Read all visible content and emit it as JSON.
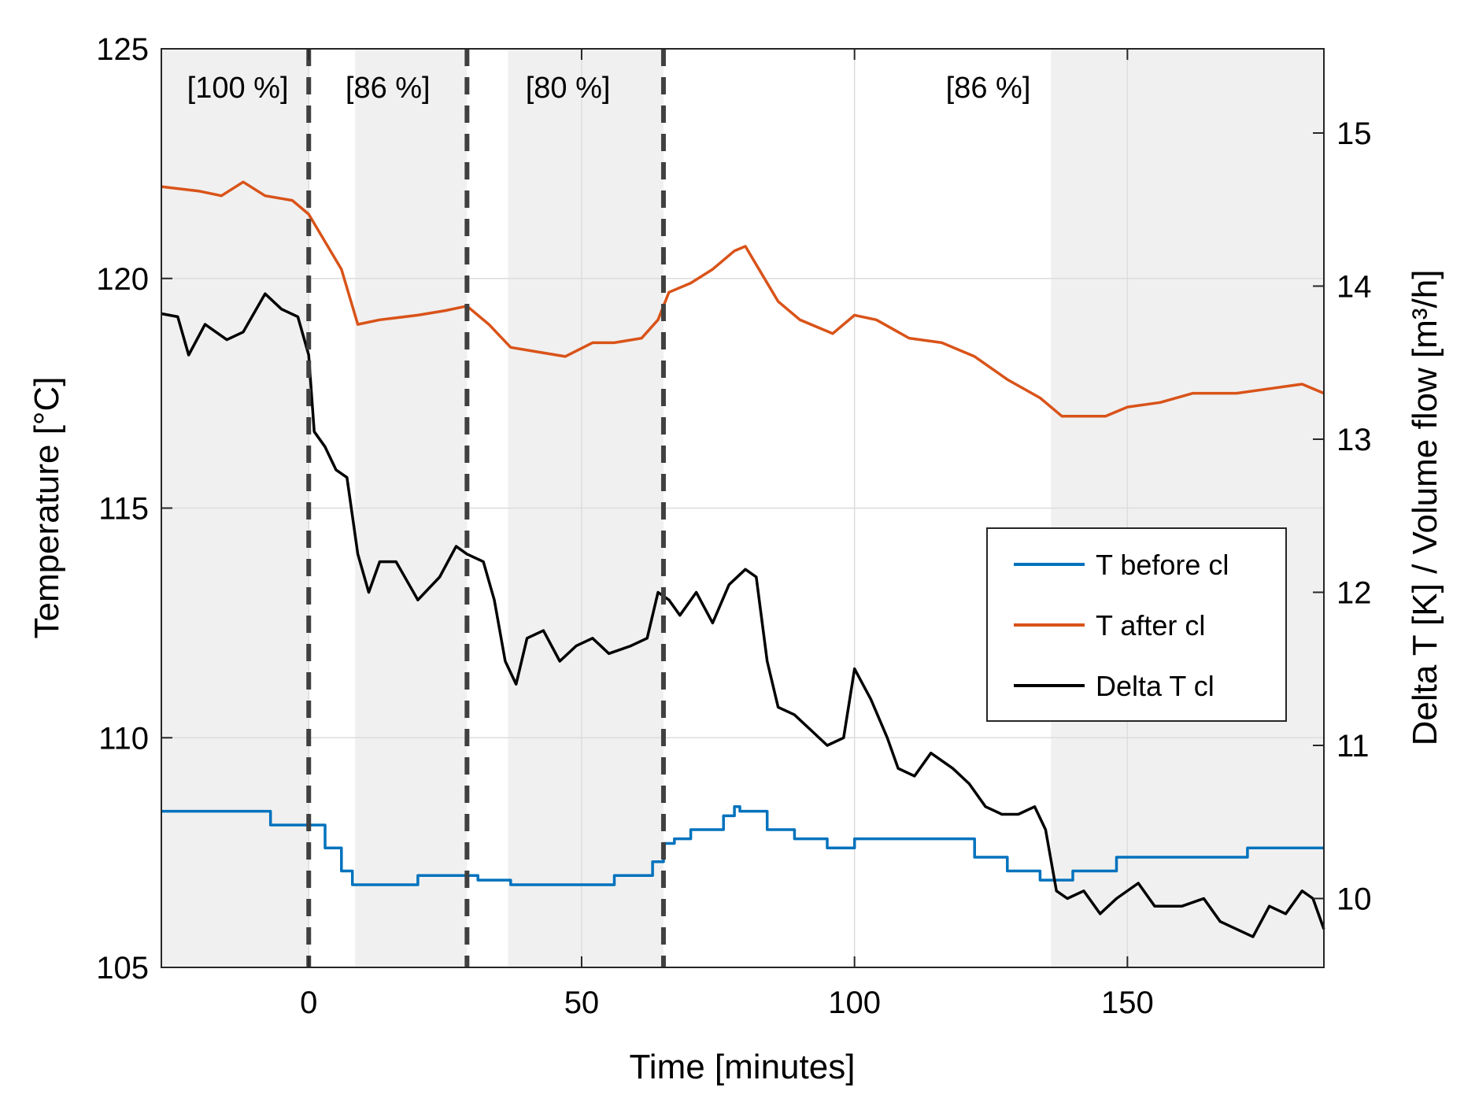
{
  "chart_data": {
    "type": "line",
    "xlabel": "Time [minutes]",
    "ylabel_left": "Temperature [°C]",
    "ylabel_right": "Delta T [K] / Volume flow [m³/h]",
    "xlim": [
      -27,
      186
    ],
    "ylim_left": [
      105,
      125
    ],
    "ylim_right": [
      9.55,
      15.55
    ],
    "x_ticks": [
      0,
      50,
      100,
      150
    ],
    "x_tick_labels": [
      "0",
      "50",
      "100",
      "150"
    ],
    "y_ticks_left": [
      105,
      110,
      115,
      120,
      125
    ],
    "y_tick_labels_left": [
      "105",
      "110",
      "115",
      "120",
      "125"
    ],
    "y_ticks_right": [
      10,
      11,
      12,
      13,
      14,
      15
    ],
    "y_tick_labels_right": [
      "10",
      "11",
      "12",
      "13",
      "14",
      "15"
    ],
    "grid": true,
    "legend_position": "center-right",
    "phase_boundaries": [
      0,
      29,
      65
    ],
    "phase_labels": [
      {
        "text": "[100 %]",
        "x": -13
      },
      {
        "text": "[86 %]",
        "x": 14.5
      },
      {
        "text": "[80 %]",
        "x": 47.5
      },
      {
        "text": "[86 %]",
        "x": 124.5
      }
    ],
    "shaded_intervals": [
      [
        -27,
        0
      ],
      [
        8.5,
        29
      ],
      [
        36.5,
        65
      ],
      [
        136,
        186
      ]
    ],
    "series": [
      {
        "name": "T before cl",
        "color": "#0072BD",
        "axis": "left",
        "step": true,
        "points": [
          [
            -27,
            108.4
          ],
          [
            -12,
            108.4
          ],
          [
            -7,
            108.1
          ],
          [
            0,
            108.1
          ],
          [
            3,
            107.6
          ],
          [
            6,
            107.1
          ],
          [
            8,
            106.8
          ],
          [
            17,
            106.8
          ],
          [
            20,
            107.0
          ],
          [
            27,
            107.0
          ],
          [
            31,
            106.9
          ],
          [
            37,
            106.8
          ],
          [
            52,
            106.8
          ],
          [
            56,
            107.0
          ],
          [
            60,
            107.0
          ],
          [
            63,
            107.3
          ],
          [
            65,
            107.7
          ],
          [
            67,
            107.8
          ],
          [
            70,
            108.0
          ],
          [
            76,
            108.3
          ],
          [
            78,
            108.5
          ],
          [
            79,
            108.4
          ],
          [
            84,
            108.0
          ],
          [
            89,
            107.8
          ],
          [
            95,
            107.6
          ],
          [
            100,
            107.8
          ],
          [
            115,
            107.8
          ],
          [
            122,
            107.4
          ],
          [
            128,
            107.1
          ],
          [
            134,
            106.9
          ],
          [
            140,
            107.1
          ],
          [
            148,
            107.4
          ],
          [
            166,
            107.4
          ],
          [
            172,
            107.6
          ],
          [
            186,
            107.6
          ]
        ]
      },
      {
        "name": "T after cl",
        "color": "#D95319",
        "axis": "left",
        "step": false,
        "points": [
          [
            -27,
            122.0
          ],
          [
            -20,
            121.9
          ],
          [
            -16,
            121.8
          ],
          [
            -12,
            122.1
          ],
          [
            -8,
            121.8
          ],
          [
            -3,
            121.7
          ],
          [
            0,
            121.4
          ],
          [
            3,
            120.8
          ],
          [
            6,
            120.2
          ],
          [
            9,
            119.0
          ],
          [
            13,
            119.1
          ],
          [
            20,
            119.2
          ],
          [
            25,
            119.3
          ],
          [
            29,
            119.4
          ],
          [
            33,
            119.0
          ],
          [
            37,
            118.5
          ],
          [
            42,
            118.4
          ],
          [
            47,
            118.3
          ],
          [
            52,
            118.6
          ],
          [
            56,
            118.6
          ],
          [
            61,
            118.7
          ],
          [
            64,
            119.1
          ],
          [
            66,
            119.7
          ],
          [
            70,
            119.9
          ],
          [
            74,
            120.2
          ],
          [
            78,
            120.6
          ],
          [
            80,
            120.7
          ],
          [
            82,
            120.3
          ],
          [
            86,
            119.5
          ],
          [
            90,
            119.1
          ],
          [
            96,
            118.8
          ],
          [
            100,
            119.2
          ],
          [
            104,
            119.1
          ],
          [
            110,
            118.7
          ],
          [
            116,
            118.6
          ],
          [
            122,
            118.3
          ],
          [
            128,
            117.8
          ],
          [
            134,
            117.4
          ],
          [
            138,
            117.0
          ],
          [
            142,
            117.0
          ],
          [
            146,
            117.0
          ],
          [
            150,
            117.2
          ],
          [
            156,
            117.3
          ],
          [
            162,
            117.5
          ],
          [
            170,
            117.5
          ],
          [
            176,
            117.6
          ],
          [
            182,
            117.7
          ],
          [
            186,
            117.5
          ]
        ]
      },
      {
        "name": "Delta T cl",
        "color": "#000000",
        "axis": "right",
        "step": false,
        "points": [
          [
            -27,
            13.82
          ],
          [
            -24,
            13.8
          ],
          [
            -22,
            13.55
          ],
          [
            -19,
            13.75
          ],
          [
            -15,
            13.65
          ],
          [
            -12,
            13.7
          ],
          [
            -8,
            13.95
          ],
          [
            -5,
            13.85
          ],
          [
            -2,
            13.8
          ],
          [
            0,
            13.55
          ],
          [
            1,
            13.05
          ],
          [
            3,
            12.95
          ],
          [
            5,
            12.8
          ],
          [
            7,
            12.75
          ],
          [
            9,
            12.25
          ],
          [
            11,
            12.0
          ],
          [
            13,
            12.2
          ],
          [
            16,
            12.2
          ],
          [
            20,
            11.95
          ],
          [
            24,
            12.1
          ],
          [
            27,
            12.3
          ],
          [
            29,
            12.25
          ],
          [
            32,
            12.2
          ],
          [
            34,
            11.95
          ],
          [
            36,
            11.55
          ],
          [
            38,
            11.4
          ],
          [
            40,
            11.7
          ],
          [
            43,
            11.75
          ],
          [
            46,
            11.55
          ],
          [
            49,
            11.65
          ],
          [
            52,
            11.7
          ],
          [
            55,
            11.6
          ],
          [
            59,
            11.65
          ],
          [
            62,
            11.7
          ],
          [
            64,
            12.0
          ],
          [
            66,
            11.95
          ],
          [
            68,
            11.85
          ],
          [
            71,
            12.0
          ],
          [
            74,
            11.8
          ],
          [
            77,
            12.05
          ],
          [
            80,
            12.15
          ],
          [
            82,
            12.1
          ],
          [
            84,
            11.55
          ],
          [
            86,
            11.25
          ],
          [
            89,
            11.2
          ],
          [
            92,
            11.1
          ],
          [
            95,
            11.0
          ],
          [
            98,
            11.05
          ],
          [
            100,
            11.5
          ],
          [
            103,
            11.3
          ],
          [
            106,
            11.05
          ],
          [
            108,
            10.85
          ],
          [
            111,
            10.8
          ],
          [
            114,
            10.95
          ],
          [
            118,
            10.85
          ],
          [
            121,
            10.75
          ],
          [
            124,
            10.6
          ],
          [
            127,
            10.55
          ],
          [
            130,
            10.55
          ],
          [
            133,
            10.6
          ],
          [
            135,
            10.45
          ],
          [
            137,
            10.05
          ],
          [
            139,
            10.0
          ],
          [
            142,
            10.05
          ],
          [
            145,
            9.9
          ],
          [
            148,
            10.0
          ],
          [
            152,
            10.1
          ],
          [
            155,
            9.95
          ],
          [
            160,
            9.95
          ],
          [
            164,
            10.0
          ],
          [
            167,
            9.85
          ],
          [
            170,
            9.8
          ],
          [
            173,
            9.75
          ],
          [
            176,
            9.95
          ],
          [
            179,
            9.9
          ],
          [
            182,
            10.05
          ],
          [
            184,
            10.0
          ],
          [
            186,
            9.8
          ]
        ]
      }
    ]
  }
}
